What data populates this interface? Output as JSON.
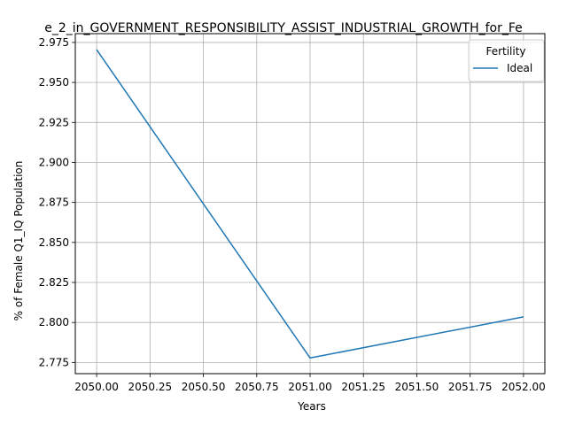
{
  "chart_data": {
    "type": "line",
    "title": "e_2_in_GOVERNMENT_RESPONSIBILITY_ASSIST_INDUSTRIAL_GROWTH_for_Fe",
    "xlabel": "Years",
    "ylabel": "% of Female Q1_IQ Population",
    "xlim": [
      2049.9,
      2052.1
    ],
    "ylim": [
      2.768,
      2.9805
    ],
    "x_ticks": [
      2050.0,
      2050.25,
      2050.5,
      2050.75,
      2051.0,
      2051.25,
      2051.5,
      2051.75,
      2052.0
    ],
    "x_tick_labels": [
      "2050.00",
      "2050.25",
      "2050.50",
      "2050.75",
      "2051.00",
      "2051.25",
      "2051.50",
      "2051.75",
      "2052.00"
    ],
    "y_ticks": [
      2.775,
      2.8,
      2.825,
      2.85,
      2.875,
      2.9,
      2.925,
      2.95,
      2.975
    ],
    "y_tick_labels": [
      "2.775",
      "2.800",
      "2.825",
      "2.850",
      "2.875",
      "2.900",
      "2.925",
      "2.950",
      "2.975"
    ],
    "grid": true,
    "legend": {
      "title": "Fertility",
      "placement": "top-right"
    },
    "series": [
      {
        "name": "Ideal",
        "color": "#1f77b4",
        "x": [
          2050,
          2051,
          2052
        ],
        "y": [
          2.9705,
          2.7778,
          2.8035
        ]
      }
    ]
  }
}
